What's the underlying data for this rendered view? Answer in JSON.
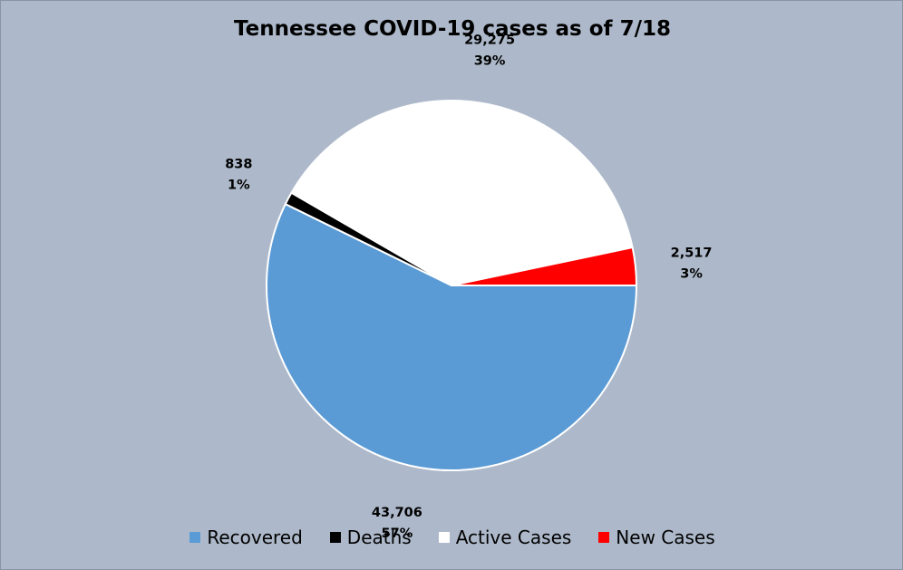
{
  "chart_data": {
    "type": "pie",
    "title": "Tennessee COVID-19 cases as of 7/18",
    "categories": [
      "Recovered",
      "Deaths",
      "Active Cases",
      "New Cases"
    ],
    "values": [
      43706,
      838,
      29275,
      2517
    ],
    "value_labels": [
      "43,706",
      "838",
      "29,275",
      "2,517"
    ],
    "percent_labels": [
      "57%",
      "1%",
      "39%",
      "3%"
    ],
    "colors": [
      "#5b9bd5",
      "#000000",
      "#ffffff",
      "#ff0000"
    ],
    "legend_position": "bottom",
    "background": "#adb9ca"
  }
}
